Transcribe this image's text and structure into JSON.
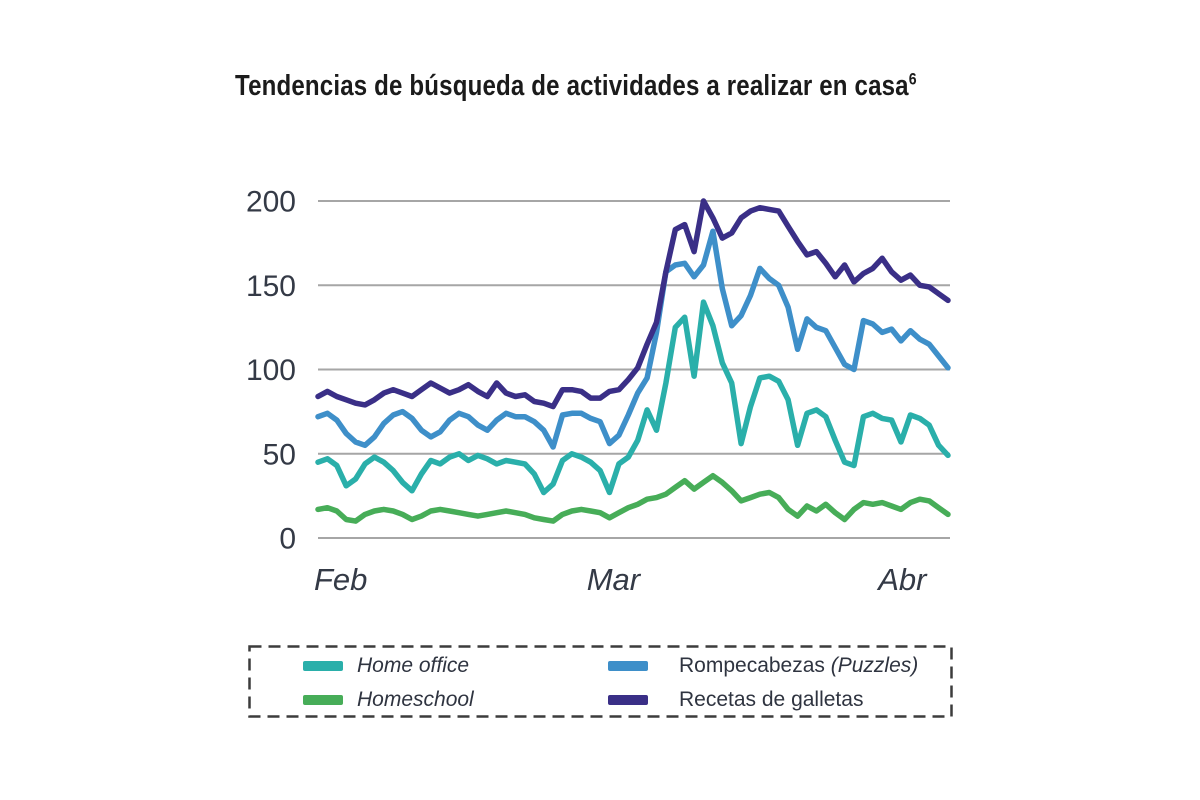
{
  "title": {
    "text": "Tendencias de búsqueda de actividades a realizar en casa",
    "superscript": "6"
  },
  "colors": {
    "grid": "#a6a6a6",
    "axis_text": "#343a46",
    "legend_border": "#3c3c3c",
    "title_text": "#1b1b1b"
  },
  "chart_data": {
    "type": "line",
    "title": "Tendencias de búsqueda de actividades a realizar en casa",
    "xlabel": "",
    "ylabel": "",
    "ylim": [
      0,
      200
    ],
    "grid": "horizontal",
    "legend_position": "bottom",
    "days": 68,
    "x_ticks": [
      {
        "label": "Feb",
        "day": 0
      },
      {
        "label": "Mar",
        "day": 29
      },
      {
        "label": "Abr",
        "day": 60
      }
    ],
    "y_ticks": [
      {
        "value": 200,
        "label": "200"
      },
      {
        "value": 150,
        "label": "150"
      },
      {
        "value": 100,
        "label": "100"
      },
      {
        "value": 50,
        "label": "50"
      },
      {
        "value": 0,
        "label": "0"
      }
    ],
    "series": [
      {
        "key": "homeschool",
        "name": "Homeschool",
        "color": "#47ad58",
        "values": [
          17,
          18,
          16,
          11,
          10,
          14,
          16,
          17,
          16,
          14,
          11,
          13,
          16,
          17,
          16,
          15,
          14,
          13,
          14,
          15,
          16,
          15,
          14,
          12,
          11,
          10,
          14,
          16,
          17,
          16,
          15,
          12,
          15,
          18,
          20,
          23,
          24,
          26,
          30,
          34,
          29,
          33,
          37,
          33,
          28,
          22,
          24,
          26,
          27,
          24,
          17,
          13,
          19,
          16,
          20,
          15,
          11,
          17,
          21,
          20,
          21,
          19,
          17,
          21,
          23,
          22,
          18,
          14
        ]
      },
      {
        "key": "home-office",
        "name": "Home office",
        "color": "#2aafaa",
        "values": [
          45,
          47,
          43,
          31,
          35,
          44,
          48,
          45,
          40,
          33,
          28,
          38,
          46,
          44,
          48,
          50,
          46,
          49,
          47,
          44,
          46,
          45,
          44,
          38,
          27,
          32,
          46,
          50,
          48,
          45,
          40,
          27,
          44,
          48,
          58,
          76,
          64,
          92,
          125,
          131,
          96,
          140,
          126,
          104,
          92,
          56,
          78,
          95,
          96,
          93,
          82,
          55,
          74,
          76,
          72,
          58,
          45,
          43,
          72,
          74,
          71,
          70,
          57,
          73,
          71,
          67,
          55,
          49
        ]
      },
      {
        "key": "rompecabezas",
        "name": "Rompecabezas (Puzzles)",
        "color": "#3e8fc9",
        "values": [
          72,
          74,
          70,
          62,
          57,
          55,
          60,
          68,
          73,
          75,
          71,
          64,
          60,
          63,
          70,
          74,
          72,
          67,
          64,
          70,
          74,
          72,
          72,
          69,
          64,
          54,
          73,
          74,
          74,
          71,
          69,
          56,
          61,
          73,
          86,
          95,
          122,
          158,
          162,
          163,
          155,
          162,
          182,
          148,
          126,
          132,
          144,
          160,
          154,
          150,
          137,
          112,
          130,
          125,
          123,
          113,
          103,
          100,
          129,
          127,
          122,
          124,
          117,
          123,
          118,
          115,
          108,
          101
        ]
      },
      {
        "key": "recetas-galletas",
        "name": "Recetas de galletas",
        "color": "#3a2f87",
        "values": [
          84,
          87,
          84,
          82,
          80,
          79,
          82,
          86,
          88,
          86,
          84,
          88,
          92,
          89,
          86,
          88,
          91,
          87,
          84,
          92,
          86,
          84,
          85,
          81,
          80,
          78,
          88,
          88,
          87,
          83,
          83,
          87,
          88,
          94,
          101,
          115,
          128,
          158,
          183,
          186,
          170,
          200,
          190,
          178,
          181,
          190,
          194,
          196,
          195,
          194,
          185,
          176,
          168,
          170,
          163,
          155,
          162,
          152,
          157,
          160,
          166,
          158,
          153,
          156,
          150,
          149,
          145,
          141
        ]
      }
    ]
  },
  "legend": {
    "items": [
      {
        "series_key": "home-office",
        "text": "",
        "text_italic": "Home office"
      },
      {
        "series_key": "rompecabezas",
        "text": "Rompecabezas ",
        "text_italic": "(Puzzles)"
      },
      {
        "series_key": "homeschool",
        "text": "",
        "text_italic": "Homeschool"
      },
      {
        "series_key": "recetas-galletas",
        "text": "Recetas de galletas",
        "text_italic": ""
      }
    ]
  }
}
